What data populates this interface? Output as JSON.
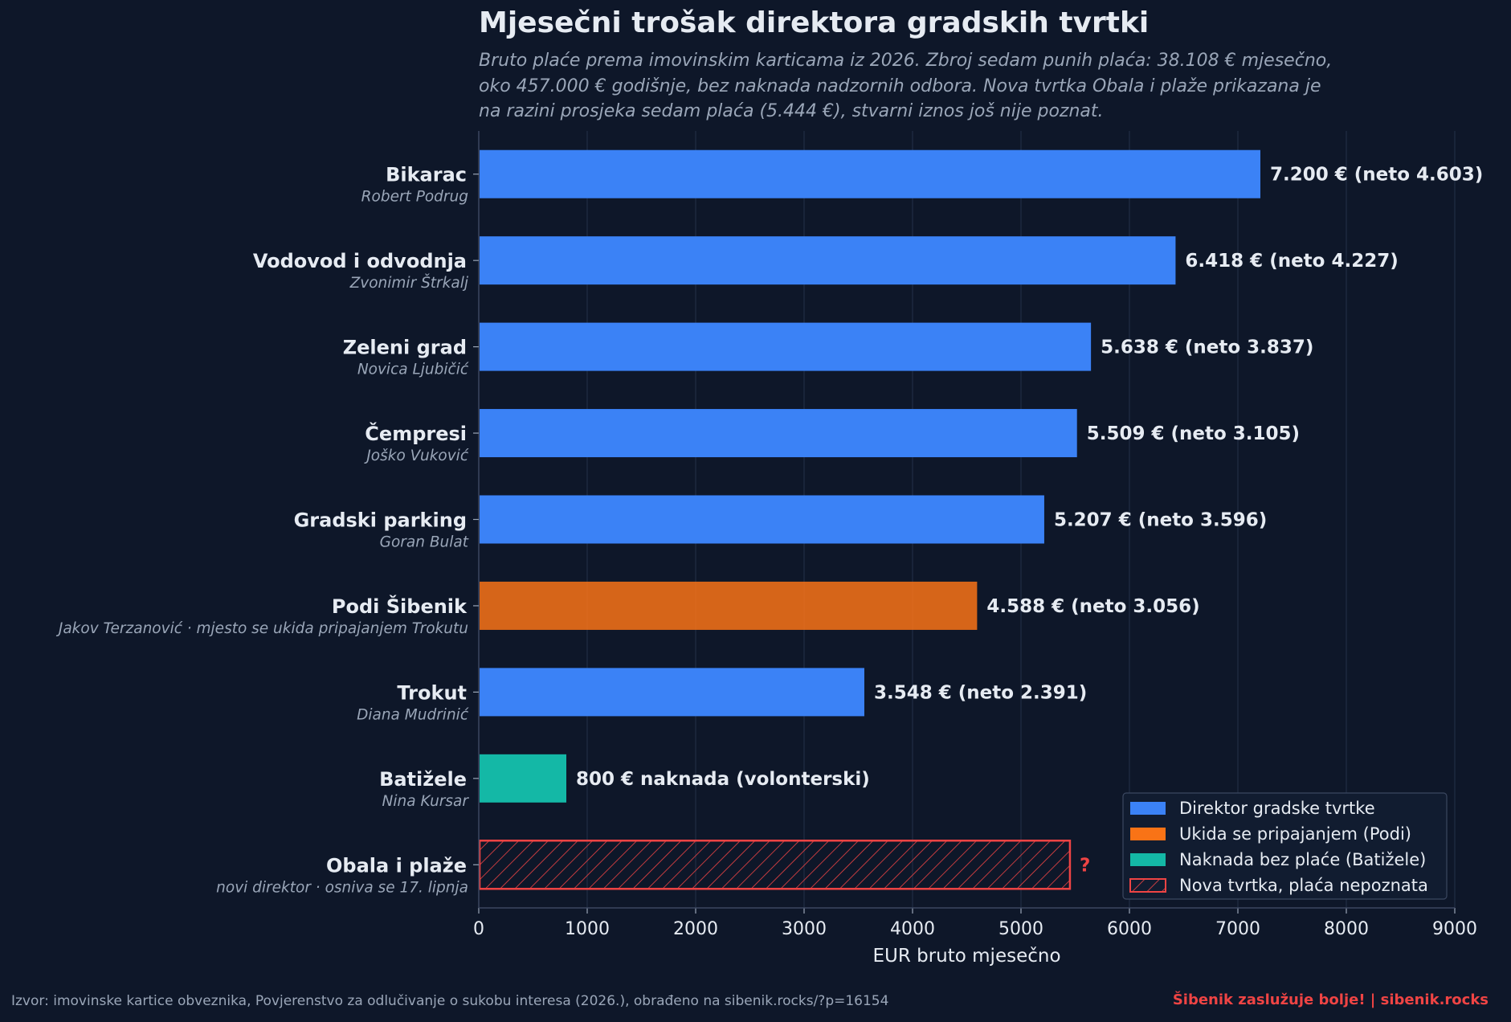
{
  "chart_data": {
    "type": "bar",
    "orientation": "horizontal",
    "title": "Mjesečni trošak direktora gradskih tvrtki",
    "subtitle": [
      "Bruto plaće prema imovinskim karticama iz 2026. Zbroj sedam punih plaća: 38.108 € mjesečno,",
      "oko 457.000 € godišnje, bez naknada nadzornih odbora. Nova tvrtka Obala i plaže prikazana je",
      "na razini prosjeka sedam plaća (5.444 €), stvarni iznos još nije poznat."
    ],
    "xlabel": "EUR bruto mjesečno",
    "xlim": [
      0,
      9000
    ],
    "xticks": [
      0,
      1000,
      2000,
      3000,
      4000,
      5000,
      6000,
      7000,
      8000,
      9000
    ],
    "grid": "vertical",
    "legend_position": "bottom-right",
    "categories": [
      {
        "name": "Bikarac",
        "sub": "Robert Podrug",
        "value": 7200,
        "label": "7.200 €  (neto 4.603)",
        "group": "director"
      },
      {
        "name": "Vodovod i odvodnja",
        "sub": "Zvonimir Štrkalj",
        "value": 6418,
        "label": "6.418 €  (neto 4.227)",
        "group": "director"
      },
      {
        "name": "Zeleni grad",
        "sub": "Novica Ljubičić",
        "value": 5638,
        "label": "5.638 €  (neto 3.837)",
        "group": "director"
      },
      {
        "name": "Čempresi",
        "sub": "Joško Vuković",
        "value": 5509,
        "label": "5.509 €  (neto 3.105)",
        "group": "director"
      },
      {
        "name": "Gradski parking",
        "sub": "Goran Bulat",
        "value": 5207,
        "label": "5.207 €  (neto 3.596)",
        "group": "director"
      },
      {
        "name": "Podi Šibenik",
        "sub": "Jakov Terzanović  ·  mjesto se ukida pripajanjem Trokutu",
        "value": 4588,
        "label": "4.588 €  (neto 3.056)",
        "group": "podi"
      },
      {
        "name": "Trokut",
        "sub": "Diana Mudrinić",
        "value": 3548,
        "label": "3.548 €  (neto 2.391)",
        "group": "director"
      },
      {
        "name": "Batižele",
        "sub": "Nina Kursar",
        "value": 800,
        "label": "800 € naknada (volonterski)",
        "group": "fee"
      },
      {
        "name": "Obala i plaže",
        "sub": "novi direktor  ·  osniva se 17. lipnja",
        "value": 5444,
        "label": "?",
        "group": "unknown"
      }
    ],
    "legend": [
      {
        "group": "director",
        "label": "Direktor gradske tvrtke"
      },
      {
        "group": "podi",
        "label": "Ukida se pripajanjem (Podi)"
      },
      {
        "group": "fee",
        "label": "Naknada bez plaće (Batižele)"
      },
      {
        "group": "unknown",
        "label": "Nova tvrtka, plaća nepoznata"
      }
    ],
    "colors": {
      "director": "#3b82f6",
      "podi": "#f97316",
      "fee": "#14b8a6",
      "unknown": "#ef4444",
      "background": "#0e1729",
      "text": "#e6ebf2",
      "muted": "#9aa6b8"
    }
  },
  "footer": {
    "source": "Izvor: imovinske kartice obveznika, Povjerenstvo za odlučivanje o sukobu interesa (2026.), obrađeno na sibenik.rocks/?p=16154",
    "brand": "Šibenik zaslužuje bolje!  |  sibenik.rocks"
  }
}
